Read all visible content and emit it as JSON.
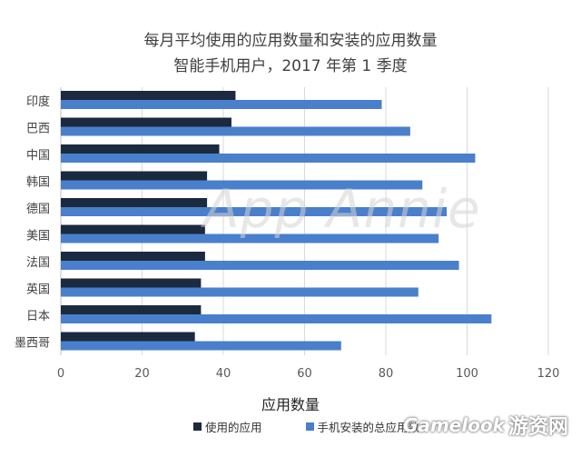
{
  "chart_data": {
    "type": "bar",
    "orientation": "horizontal",
    "title": "每月平均使用的应用数量和安装的应用数量",
    "subtitle": "智能手机用户，2017 年第 1 季度",
    "xlabel": "应用数量",
    "xlim": [
      0,
      120
    ],
    "xticks": [
      0,
      20,
      40,
      60,
      80,
      100,
      120
    ],
    "grid": true,
    "legend_position": "bottom",
    "categories": [
      "印度",
      "巴西",
      "中国",
      "韩国",
      "德国",
      "美国",
      "法国",
      "英国",
      "日本",
      "墨西哥"
    ],
    "series": [
      {
        "name": "使用的应用",
        "color": "#1b2a3f",
        "values": [
          43,
          42,
          39,
          36,
          36,
          35.5,
          35.5,
          34.5,
          34.5,
          33
        ]
      },
      {
        "name": "手机安装的总应用数",
        "color": "#4a7fcb",
        "values": [
          79,
          86,
          102,
          89,
          95,
          93,
          98,
          88,
          106,
          69
        ]
      }
    ]
  },
  "watermark": "App Annie",
  "corner_logo": {
    "latin": "Gamelook",
    "cn": "游资网"
  }
}
